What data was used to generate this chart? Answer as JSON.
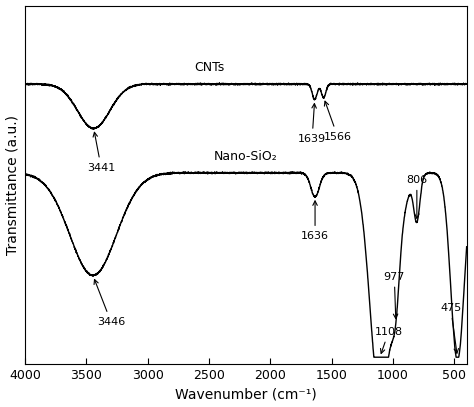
{
  "xlabel": "Wavenumber (cm⁻¹)",
  "ylabel": "Transmittance (a.u.)",
  "xlim": [
    4000,
    400
  ],
  "background_color": "#ffffff",
  "text_color": "#000000",
  "line_color": "#000000",
  "cnts_label": "CNTs",
  "sio2_label": "Nano-SiO₂",
  "xticks": [
    4000,
    3500,
    3000,
    2500,
    2000,
    1500,
    1000,
    500
  ],
  "xtick_labels": [
    "4000",
    "3500",
    "3000",
    "2500",
    "2000",
    "1500",
    "1000",
    "500"
  ]
}
